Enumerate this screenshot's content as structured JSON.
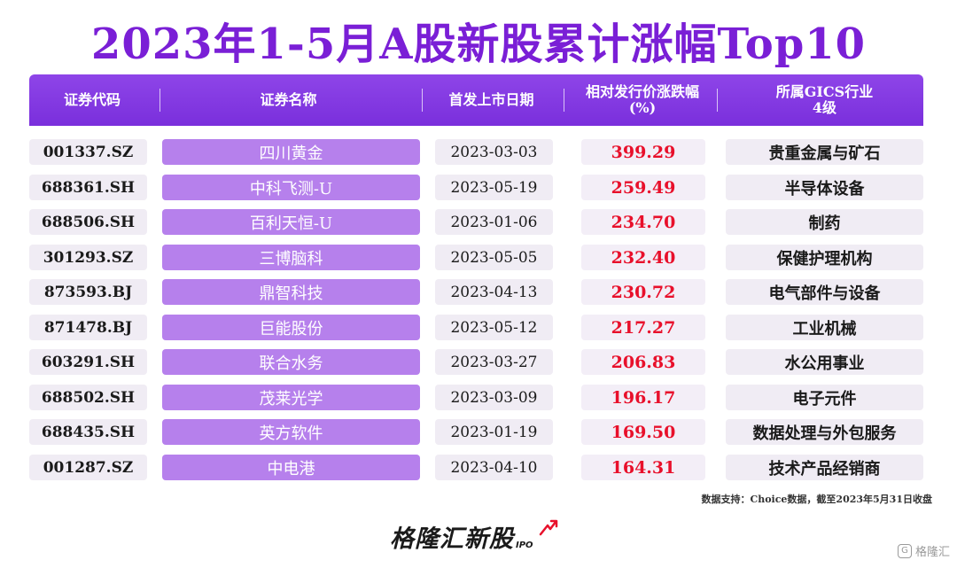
{
  "title": "2023年1-5月A股新股累计涨幅Top10",
  "columns": {
    "code": "证券代码",
    "name": "证券名称",
    "date": "首发上市日期",
    "change_line1": "相对发行价涨跌幅",
    "change_line2": "(%)",
    "industry_line1": "所属GICS行业",
    "industry_line2": "4级"
  },
  "rows": [
    {
      "code": "001337.SZ",
      "name": "四川黄金",
      "date": "2023-03-03",
      "change": "399.29",
      "industry": "贵重金属与矿石"
    },
    {
      "code": "688361.SH",
      "name": "中科飞测-U",
      "date": "2023-05-19",
      "change": "259.49",
      "industry": "半导体设备"
    },
    {
      "code": "688506.SH",
      "name": "百利天恒-U",
      "date": "2023-01-06",
      "change": "234.70",
      "industry": "制药"
    },
    {
      "code": "301293.SZ",
      "name": "三博脑科",
      "date": "2023-05-05",
      "change": "232.40",
      "industry": "保健护理机构"
    },
    {
      "code": "873593.BJ",
      "name": "鼎智科技",
      "date": "2023-04-13",
      "change": "230.72",
      "industry": "电气部件与设备"
    },
    {
      "code": "871478.BJ",
      "name": "巨能股份",
      "date": "2023-05-12",
      "change": "217.27",
      "industry": "工业机械"
    },
    {
      "code": "603291.SH",
      "name": "联合水务",
      "date": "2023-03-27",
      "change": "206.83",
      "industry": "水公用事业"
    },
    {
      "code": "688502.SH",
      "name": "茂莱光学",
      "date": "2023-03-09",
      "change": "196.17",
      "industry": "电子元件"
    },
    {
      "code": "688435.SH",
      "name": "英方软件",
      "date": "2023-01-19",
      "change": "169.50",
      "industry": "数据处理与外包服务"
    },
    {
      "code": "001287.SZ",
      "name": "中电港",
      "date": "2023-04-10",
      "change": "164.31",
      "industry": "技术产品经销商"
    }
  ],
  "note": "数据支持：Choice数据，截至2023年5月31日收盘",
  "logo": {
    "text": "格隆汇新股",
    "suffix": "IPO",
    "arrow_icon": "up-arrow-icon"
  },
  "watermark": {
    "icon": "gelonghui-logo-icon",
    "icon_text": "G",
    "text": "格隆汇"
  },
  "colors": {
    "title": "#7a1fd6",
    "header": "#8e45e8",
    "name_cell": "#b680ec",
    "change_text": "#e8102b",
    "cell_bg": "#f0ecf4"
  },
  "chart_data": {
    "type": "table",
    "title": "2023年1-5月A股新股累计涨幅Top10",
    "columns": [
      "证券代码",
      "证券名称",
      "首发上市日期",
      "相对发行价涨跌幅 (%)",
      "所属GICS行业 4级"
    ],
    "rows": [
      [
        "001337.SZ",
        "四川黄金",
        "2023-03-03",
        399.29,
        "贵重金属与矿石"
      ],
      [
        "688361.SH",
        "中科飞测-U",
        "2023-05-19",
        259.49,
        "半导体设备"
      ],
      [
        "688506.SH",
        "百利天恒-U",
        "2023-01-06",
        234.7,
        "制药"
      ],
      [
        "301293.SZ",
        "三博脑科",
        "2023-05-05",
        232.4,
        "保健护理机构"
      ],
      [
        "873593.BJ",
        "鼎智科技",
        "2023-04-13",
        230.72,
        "电气部件与设备"
      ],
      [
        "871478.BJ",
        "巨能股份",
        "2023-05-12",
        217.27,
        "工业机械"
      ],
      [
        "603291.SH",
        "联合水务",
        "2023-03-27",
        206.83,
        "水公用事业"
      ],
      [
        "688502.SH",
        "茂莱光学",
        "2023-03-09",
        196.17,
        "电子元件"
      ],
      [
        "688435.SH",
        "英方软件",
        "2023-01-19",
        169.5,
        "数据处理与外包服务"
      ],
      [
        "001287.SZ",
        "中电港",
        "2023-04-10",
        164.31,
        "技术产品经销商"
      ]
    ]
  }
}
